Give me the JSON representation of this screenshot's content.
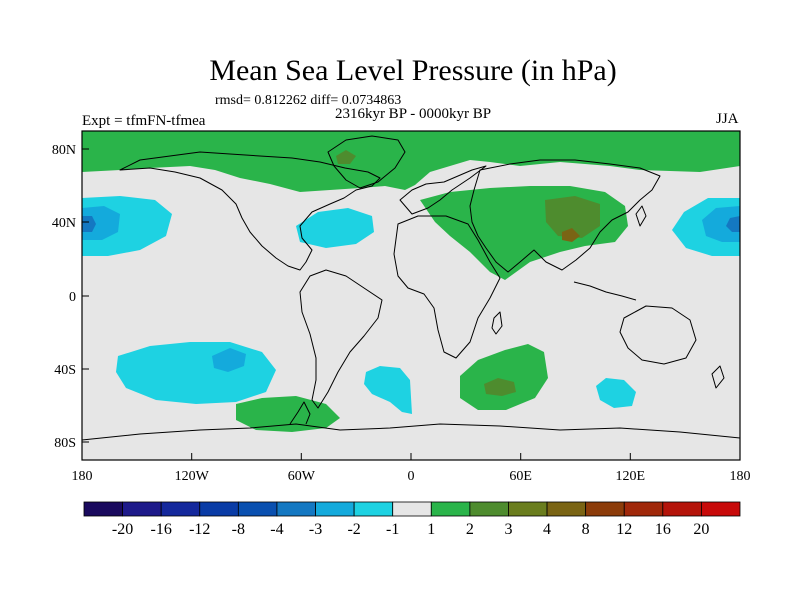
{
  "header": {
    "title": "Mean Sea Level Pressure (in hPa)",
    "stats": "rmsd= 0.812262 diff= 0.0734863",
    "period": "2316kyr BP - 0000kyr BP",
    "experiment": "Expt = tfmFN-tfmea",
    "season": "JJA"
  },
  "axes": {
    "x_ticks": [
      "180",
      "120W",
      "60W",
      "0",
      "60E",
      "120E",
      "180"
    ],
    "y_ticks": [
      "80N",
      "40N",
      "0",
      "40S",
      "80S"
    ]
  },
  "colorbar": {
    "labels": [
      "-20",
      "-16",
      "-12",
      "-8",
      "-4",
      "-3",
      "-2",
      "-1",
      "1",
      "2",
      "3",
      "4",
      "8",
      "12",
      "16",
      "20"
    ],
    "colors": [
      "#1a0a5e",
      "#1e1a8a",
      "#14289c",
      "#0a3ca6",
      "#0a50b0",
      "#1478c2",
      "#14aadc",
      "#1ed2e2",
      "#e6e6e6",
      "#2ab44a",
      "#4e8c2e",
      "#6a7d1e",
      "#7a6414",
      "#8c3c0a",
      "#a0280a",
      "#b4140a",
      "#c80a0a"
    ]
  },
  "map": {
    "background_color": "#e6e6e6",
    "coastline_color": "#000000",
    "positive_color": "#2ab44a",
    "positive_dark_color": "#4e8c2e",
    "positive_strong_color": "#7a6414",
    "negative_light_color": "#1ed2e2",
    "negative_color": "#14aadc",
    "negative_dark_color": "#1478c2"
  }
}
